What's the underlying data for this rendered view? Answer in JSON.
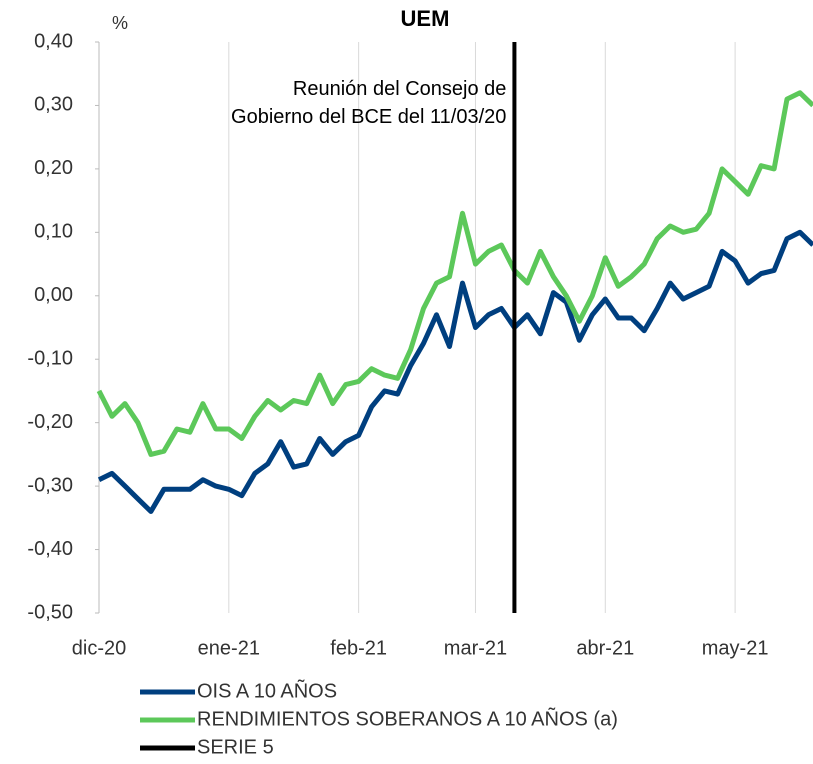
{
  "chart_data": {
    "type": "line",
    "title": "UEM",
    "y_unit": "%",
    "annotation": "Reunión del Consejo de Gobierno del BCE del 11/03/20",
    "categories": [
      "dic-20",
      null,
      null,
      null,
      null,
      null,
      null,
      null,
      null,
      null,
      "ene-21",
      null,
      null,
      null,
      null,
      null,
      null,
      null,
      null,
      null,
      "feb-21",
      null,
      null,
      null,
      null,
      null,
      null,
      null,
      null,
      "mar-21",
      null,
      null,
      null,
      null,
      null,
      null,
      null,
      null,
      null,
      "abr-21",
      null,
      null,
      null,
      null,
      null,
      null,
      null,
      null,
      null,
      "may-21",
      null,
      null,
      null,
      null,
      null,
      null
    ],
    "series": [
      {
        "name": "OIS A 10 AÑOS",
        "color": "#003f7f",
        "values": [
          -0.29,
          -0.28,
          -0.3,
          -0.32,
          -0.34,
          -0.305,
          -0.305,
          -0.305,
          -0.29,
          -0.3,
          -0.305,
          -0.315,
          -0.28,
          -0.265,
          -0.23,
          -0.27,
          -0.265,
          -0.225,
          -0.25,
          -0.23,
          -0.22,
          -0.175,
          -0.15,
          -0.155,
          -0.11,
          -0.075,
          -0.03,
          -0.08,
          0.02,
          -0.05,
          -0.03,
          -0.02,
          -0.05,
          -0.03,
          -0.06,
          0.005,
          -0.01,
          -0.07,
          -0.03,
          -0.005,
          -0.035,
          -0.035,
          -0.055,
          -0.02,
          0.02,
          -0.005,
          0.005,
          0.015,
          0.07,
          0.055,
          0.02,
          0.035,
          0.04,
          0.09,
          0.1,
          0.08
        ]
      },
      {
        "name": "RENDIMIENTOS SOBERANOS A 10 AÑOS (a)",
        "color": "#5cc85a",
        "values": [
          -0.15,
          -0.19,
          -0.17,
          -0.2,
          -0.25,
          -0.245,
          -0.21,
          -0.215,
          -0.17,
          -0.21,
          -0.21,
          -0.225,
          -0.19,
          -0.165,
          -0.18,
          -0.165,
          -0.17,
          -0.125,
          -0.17,
          -0.14,
          -0.135,
          -0.115,
          -0.125,
          -0.13,
          -0.085,
          -0.02,
          0.02,
          0.03,
          0.13,
          0.05,
          0.07,
          0.08,
          0.04,
          0.02,
          0.07,
          0.03,
          0.0,
          -0.04,
          0.0,
          0.06,
          0.015,
          0.03,
          0.05,
          0.09,
          0.11,
          0.1,
          0.105,
          0.13,
          0.2,
          0.18,
          0.16,
          0.205,
          0.2,
          0.31,
          0.32,
          0.3
        ]
      },
      {
        "name": "SERIE 5",
        "color": "#000000",
        "vline_index": 32
      }
    ],
    "ylim": [
      -0.5,
      0.4
    ],
    "yticks": [
      {
        "value": -0.5,
        "label": "-0,50"
      },
      {
        "value": -0.4,
        "label": "-0,40"
      },
      {
        "value": -0.3,
        "label": "-0,30"
      },
      {
        "value": -0.2,
        "label": "-0,20"
      },
      {
        "value": -0.1,
        "label": "-0,10"
      },
      {
        "value": 0,
        "label": "0,00"
      },
      {
        "value": 0.1,
        "label": "0,10"
      },
      {
        "value": 0.2,
        "label": "0,20"
      },
      {
        "value": 0.3,
        "label": "0,30"
      },
      {
        "value": 0.4,
        "label": "0,40"
      }
    ],
    "grid": "x"
  }
}
